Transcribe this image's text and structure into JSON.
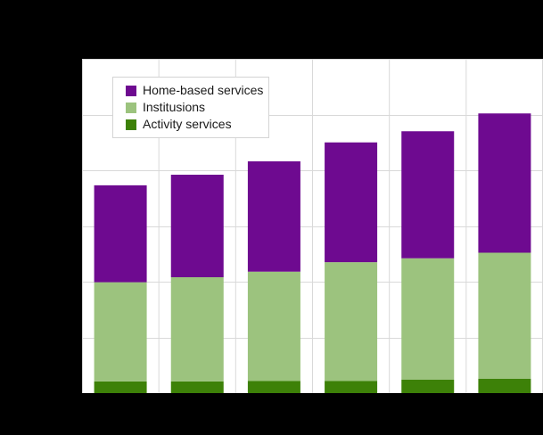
{
  "colors": {
    "figure_background": "#000000",
    "plot_background": "#ffffff",
    "gridline": "#d9d9d9",
    "legend_border": "#d4d4d4",
    "legend_text": "#1a1a1a"
  },
  "chart_data": {
    "type": "bar",
    "stacked": true,
    "orientation": "vertical",
    "categories": [
      "",
      "",
      "",
      "",
      "",
      ""
    ],
    "x_tick_labels_visible": false,
    "y_tick_labels_visible": false,
    "title_visible": false,
    "grid": true,
    "y_unit": "gridline-intervals (axis labels not visible in image)",
    "ylim": [
      0,
      6
    ],
    "series": [
      {
        "name": "Activity services",
        "color": "#3d8108",
        "values": [
          0.21,
          0.21,
          0.22,
          0.22,
          0.24,
          0.26
        ]
      },
      {
        "name": "Institusions",
        "color": "#9cc37e",
        "values": [
          1.78,
          1.87,
          1.96,
          2.13,
          2.18,
          2.26
        ]
      },
      {
        "name": "Home-based services",
        "color": "#6e0a90",
        "values": [
          1.74,
          1.84,
          1.98,
          2.15,
          2.28,
          2.5
        ]
      }
    ],
    "legend": {
      "position": "top-left",
      "order_top_to_bottom": [
        2,
        1,
        0
      ]
    }
  }
}
